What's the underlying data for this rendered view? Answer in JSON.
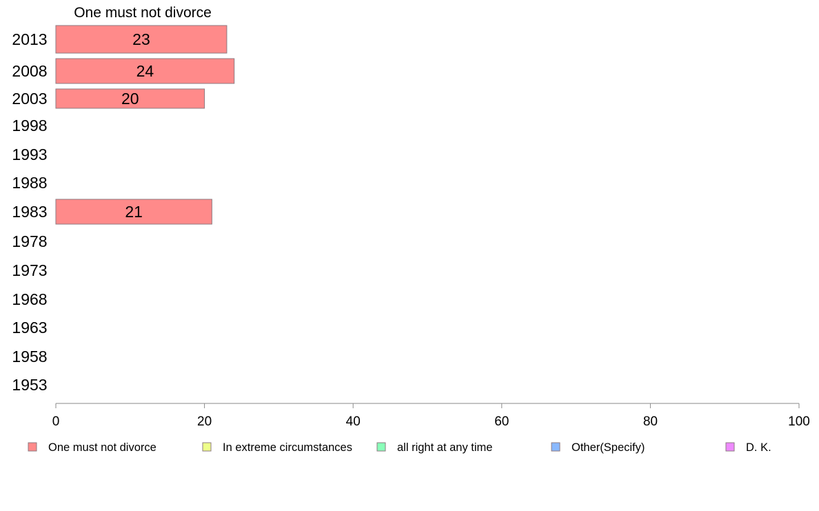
{
  "chart_data": {
    "type": "bar",
    "orientation": "horizontal",
    "title": "One must not divorce",
    "categories": [
      "2013",
      "2008",
      "2003",
      "1998",
      "1993",
      "1988",
      "1983",
      "1978",
      "1973",
      "1968",
      "1963",
      "1958",
      "1953"
    ],
    "series": [
      {
        "name": "One must not divorce",
        "color": "#ff8a8a",
        "values": [
          23,
          24,
          20,
          null,
          null,
          null,
          21,
          null,
          null,
          null,
          null,
          null,
          null
        ]
      }
    ],
    "xlim": [
      0,
      100
    ],
    "xticks": [
      0,
      20,
      40,
      60,
      80,
      100
    ],
    "grid": false,
    "legend_position": "bottom",
    "legend": [
      {
        "label": "One must not divorce",
        "color": "#ff8a8a"
      },
      {
        "label": "In extreme circumstances",
        "color": "#eeff8a"
      },
      {
        "label": "all right at any time",
        "color": "#8affb9"
      },
      {
        "label": "Other(Specify)",
        "color": "#8ab9ff"
      },
      {
        "label": "D. K.",
        "color": "#ee8aff"
      }
    ]
  }
}
